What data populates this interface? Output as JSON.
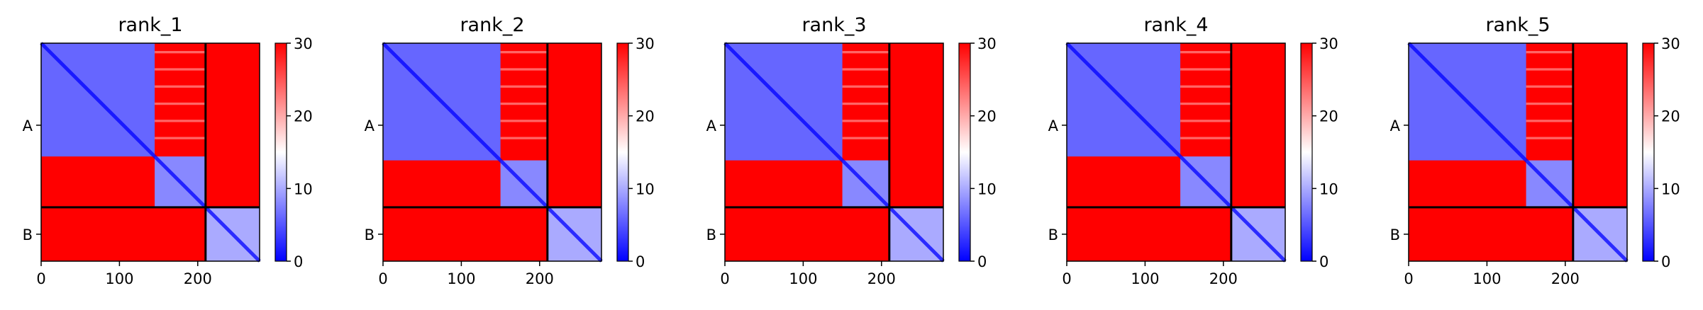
{
  "chart_data": {
    "type": "heatmap",
    "description": "",
    "color_scale": {
      "min": 0,
      "max": 30,
      "ticks": [
        0,
        10,
        20,
        30
      ],
      "low_color": "#0000ff",
      "mid_color": "#ffffff",
      "high_color": "#ff0000"
    },
    "x_axis": {
      "ticks": [
        0,
        100,
        200
      ],
      "range": [
        0,
        279
      ]
    },
    "chains": [
      {
        "label": "A",
        "start": 0,
        "end": 210
      },
      {
        "label": "B",
        "start": 210,
        "end": 279
      }
    ],
    "panels": [
      {
        "title": "rank_1"
      },
      {
        "title": "rank_2"
      },
      {
        "title": "rank_3"
      },
      {
        "title": "rank_4"
      },
      {
        "title": "rank_5"
      }
    ]
  }
}
